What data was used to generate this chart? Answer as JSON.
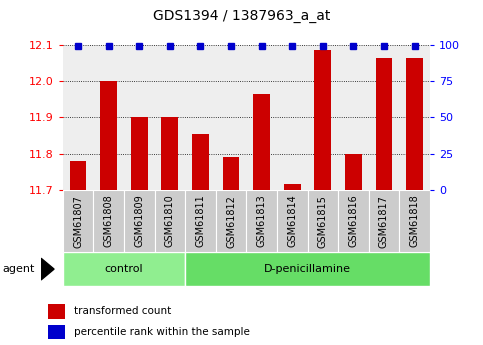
{
  "title": "GDS1394 / 1387963_a_at",
  "samples": [
    "GSM61807",
    "GSM61808",
    "GSM61809",
    "GSM61810",
    "GSM61811",
    "GSM61812",
    "GSM61813",
    "GSM61814",
    "GSM61815",
    "GSM61816",
    "GSM61817",
    "GSM61818"
  ],
  "red_values": [
    11.78,
    12.0,
    11.9,
    11.9,
    11.855,
    11.79,
    11.965,
    11.715,
    12.085,
    11.8,
    12.065,
    12.065
  ],
  "ymin": 11.7,
  "ymax": 12.1,
  "yticks_left": [
    11.7,
    11.8,
    11.9,
    12.0,
    12.1
  ],
  "yticks_right": [
    0,
    25,
    50,
    75,
    100
  ],
  "groups": [
    {
      "label": "control",
      "start": 0,
      "end": 4,
      "color": "#90ee90"
    },
    {
      "label": "D-penicillamine",
      "start": 4,
      "end": 12,
      "color": "#66dd66"
    }
  ],
  "agent_label": "agent",
  "bar_color": "#cc0000",
  "dot_color": "#0000cc",
  "bar_width": 0.55,
  "background_color": "#ffffff",
  "plot_bg_color": "#eeeeee",
  "grid_color": "#000000",
  "tick_box_color": "#cccccc",
  "legend_items": [
    "transformed count",
    "percentile rank within the sample"
  ],
  "legend_colors": [
    "#cc0000",
    "#0000cc"
  ]
}
